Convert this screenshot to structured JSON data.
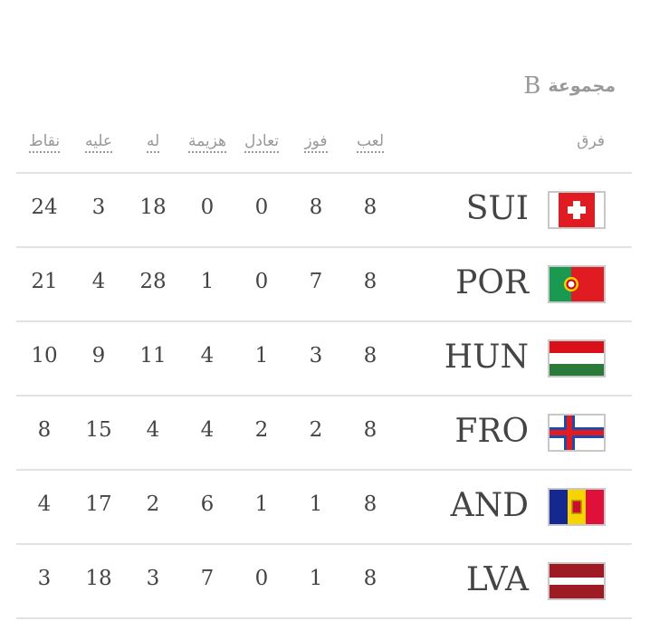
{
  "group": {
    "label": "مجموعة",
    "letter": "B"
  },
  "headers": {
    "team": "فرق",
    "played": "لعب",
    "won": "فوز",
    "drawn": "تعادل",
    "lost": "هزيمة",
    "for": "له",
    "against": "عليه",
    "points": "نقاط"
  },
  "teams": [
    {
      "code": "SUI",
      "flag": "switzerland-flag",
      "played": 8,
      "won": 8,
      "drawn": 0,
      "lost": 0,
      "for": 18,
      "against": 3,
      "points": 24
    },
    {
      "code": "POR",
      "flag": "portugal-flag",
      "played": 8,
      "won": 7,
      "drawn": 0,
      "lost": 1,
      "for": 28,
      "against": 4,
      "points": 21
    },
    {
      "code": "HUN",
      "flag": "hungary-flag",
      "played": 8,
      "won": 3,
      "drawn": 1,
      "lost": 4,
      "for": 11,
      "against": 9,
      "points": 10
    },
    {
      "code": "FRO",
      "flag": "faroe-islands-flag",
      "played": 8,
      "won": 2,
      "drawn": 2,
      "lost": 4,
      "for": 4,
      "against": 15,
      "points": 8
    },
    {
      "code": "AND",
      "flag": "andorra-flag",
      "played": 8,
      "won": 1,
      "drawn": 1,
      "lost": 6,
      "for": 2,
      "against": 17,
      "points": 4
    },
    {
      "code": "LVA",
      "flag": "latvia-flag",
      "played": 8,
      "won": 1,
      "drawn": 0,
      "lost": 7,
      "for": 3,
      "against": 18,
      "points": 3
    }
  ]
}
